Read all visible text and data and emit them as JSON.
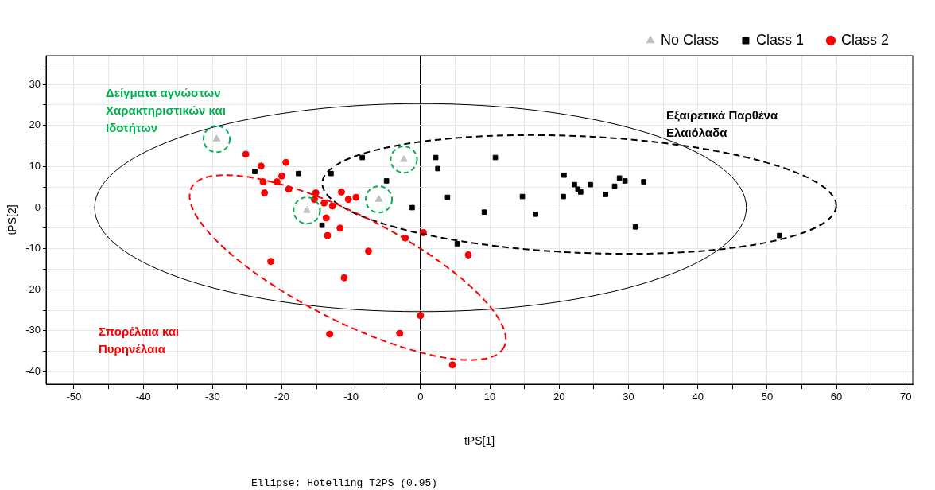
{
  "chart_data": {
    "type": "scatter",
    "xlabel": "tPS[1]",
    "ylabel": "tPS[2]",
    "xlim": [
      -54,
      71
    ],
    "ylim": [
      -43,
      37
    ],
    "xticks": [
      -50,
      {
        "value": -45,
        "label": null
      },
      -40,
      {
        "value": -35,
        "label": null
      },
      -30,
      {
        "value": -25,
        "label": null
      },
      -20,
      {
        "value": -15,
        "label": null
      },
      -10,
      {
        "value": -5,
        "label": null
      },
      0,
      {
        "value": 5,
        "label": null
      },
      10,
      {
        "value": 15,
        "label": null
      },
      20,
      {
        "value": 25,
        "label": null
      },
      30,
      {
        "value": 35,
        "label": null
      },
      40,
      {
        "value": 45,
        "label": null
      },
      50,
      {
        "value": 55,
        "label": null
      },
      60,
      {
        "value": 65,
        "label": null
      },
      70
    ],
    "yticks": [
      -40,
      {
        "value": -35,
        "label": null
      },
      -30,
      {
        "value": -25,
        "label": null
      },
      -20,
      {
        "value": -15,
        "label": null
      },
      -10,
      {
        "value": -5,
        "label": null
      },
      0,
      {
        "value": 5,
        "label": null
      },
      10,
      {
        "value": 15,
        "label": null
      },
      20,
      {
        "value": 25,
        "label": null
      },
      30,
      {
        "value": 35,
        "label": null
      }
    ],
    "grid": true,
    "legend": "top right",
    "annotations": [
      "Δείγματα αγνώστων Χαρακτηριστικών και Ιδοτήτων",
      "Εξαιρετικά Παρθένα Ελαιόλαδα",
      "Σπορέλαια και Πυρηνέλαια",
      "Ellipse: Hotelling T2PS (0.95)"
    ],
    "series": [
      {
        "name": "No Class",
        "color": "#c0c0c0",
        "marker": "triangle",
        "x": [
          -29.4,
          -16.4,
          -6.0,
          -2.4
        ],
        "values": [
          16.7,
          -0.7,
          2.0,
          11.7
        ]
      },
      {
        "name": "Class 1",
        "color": "#000000",
        "marker": "square",
        "x": [
          -23.9,
          -17.6,
          -12.9,
          -8.4,
          -4.9,
          -1.2,
          -14.2,
          2.2,
          2.5,
          3.9,
          10.8,
          9.2,
          14.7,
          16.6,
          20.7,
          20.6,
          22.2,
          22.7,
          23.1,
          24.5,
          26.7,
          28.0,
          28.7,
          29.5,
          32.2,
          31.0,
          5.3,
          51.8
        ],
        "values": [
          8.8,
          8.3,
          8.3,
          12.2,
          6.5,
          0,
          -4.3,
          12.2,
          9.5,
          2.5,
          12.2,
          -1.1,
          2.7,
          -1.6,
          7.9,
          2.7,
          5.6,
          4.5,
          3.8,
          5.6,
          3.2,
          5.2,
          7.2,
          6.5,
          6.3,
          -4.7,
          -8.8,
          -6.8
        ]
      },
      {
        "name": "Class 2",
        "color": "#ff0000",
        "marker": "circle",
        "x": [
          -25.2,
          -23.0,
          -22.7,
          -22.5,
          -20.7,
          -20.0,
          -19.4,
          -19.0,
          -15.1,
          -15.3,
          -13.9,
          -12.7,
          -13.6,
          -13.4,
          -11.6,
          -11.4,
          -10.4,
          -9.3,
          -7.5,
          -11.0,
          -21.6,
          -2.2,
          0.4,
          0,
          -3.0,
          -13.1,
          4.6,
          6.9
        ],
        "values": [
          13.0,
          10.1,
          6.3,
          3.6,
          6.3,
          7.7,
          11.0,
          4.5,
          3.6,
          2.0,
          1.1,
          0.4,
          -2.5,
          -6.8,
          -5.0,
          3.8,
          2.0,
          2.5,
          -10.6,
          -17.1,
          -13.1,
          -7.4,
          -6.1,
          -26.3,
          -30.6,
          -30.8,
          -38.3,
          -11.5
        ]
      }
    ]
  }
}
